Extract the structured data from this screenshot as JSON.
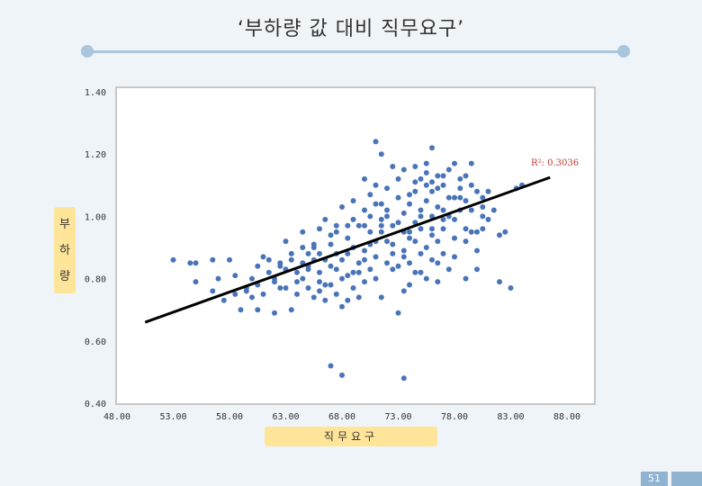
{
  "slide": {
    "title": "‘부하량 값 대비 직무요구’",
    "page_number": "51"
  },
  "colors": {
    "point": "#4a74b8",
    "trendline": "#000000",
    "r2_text": "#c0392b",
    "label_box": "#ffe599",
    "accent": "#a9c6dc"
  },
  "chart_data": {
    "type": "scatter",
    "title": "",
    "xlabel": "직무요구",
    "ylabel": "부하량",
    "xlim": [
      48,
      88
    ],
    "ylim": [
      0.4,
      1.4
    ],
    "x_ticks": [
      "48.00",
      "53.00",
      "58.00",
      "63.00",
      "68.00",
      "73.00",
      "78.00",
      "83.00",
      "88.00"
    ],
    "y_ticks": [
      "0.40",
      "0.60",
      "0.80",
      "1.00",
      "1.20",
      "1.40"
    ],
    "grid": false,
    "trendline": {
      "x": [
        50.5,
        86.5
      ],
      "y": [
        0.66,
        1.125
      ]
    },
    "r2_label": "R²: 0.3036",
    "points": [
      [
        53.0,
        0.86
      ],
      [
        54.5,
        0.85
      ],
      [
        55.0,
        0.85
      ],
      [
        56.5,
        0.86
      ],
      [
        58.0,
        0.86
      ],
      [
        55.0,
        0.79
      ],
      [
        56.5,
        0.76
      ],
      [
        57.5,
        0.73
      ],
      [
        58.5,
        0.81
      ],
      [
        59.5,
        0.77
      ],
      [
        60.0,
        0.8
      ],
      [
        60.5,
        0.84
      ],
      [
        61.0,
        0.87
      ],
      [
        61.5,
        0.82
      ],
      [
        62.0,
        0.79
      ],
      [
        62.5,
        0.77
      ],
      [
        63.0,
        0.83
      ],
      [
        59.0,
        0.7
      ],
      [
        60.5,
        0.7
      ],
      [
        62.0,
        0.69
      ],
      [
        63.5,
        0.7
      ],
      [
        64.0,
        0.75
      ],
      [
        64.5,
        0.8
      ],
      [
        65.0,
        0.84
      ],
      [
        65.5,
        0.86
      ],
      [
        66.0,
        0.82
      ],
      [
        66.5,
        0.78
      ],
      [
        67.0,
        0.84
      ],
      [
        63.0,
        0.92
      ],
      [
        64.5,
        0.95
      ],
      [
        65.5,
        0.9
      ],
      [
        66.0,
        0.96
      ],
      [
        66.5,
        0.99
      ],
      [
        67.0,
        0.94
      ],
      [
        67.5,
        0.88
      ],
      [
        68.0,
        0.86
      ],
      [
        68.5,
        0.81
      ],
      [
        69.0,
        0.77
      ],
      [
        69.5,
        0.82
      ],
      [
        70.0,
        0.86
      ],
      [
        70.5,
        0.83
      ],
      [
        71.0,
        0.8
      ],
      [
        67.5,
        0.75
      ],
      [
        68.5,
        0.73
      ],
      [
        69.5,
        0.74
      ],
      [
        70.0,
        0.97
      ],
      [
        70.5,
        1.0
      ],
      [
        71.0,
        1.04
      ],
      [
        71.5,
        0.97
      ],
      [
        72.0,
        0.92
      ],
      [
        72.5,
        0.88
      ],
      [
        73.0,
        0.84
      ],
      [
        73.5,
        0.89
      ],
      [
        74.0,
        0.93
      ],
      [
        74.5,
        0.98
      ],
      [
        75.0,
        1.02
      ],
      [
        75.5,
        1.05
      ],
      [
        76.0,
        1.08
      ],
      [
        75.0,
        1.12
      ],
      [
        75.5,
        1.1
      ],
      [
        76.0,
        1.11
      ],
      [
        76.5,
        1.03
      ],
      [
        77.0,
        0.99
      ],
      [
        77.5,
        1.0
      ],
      [
        78.0,
        1.06
      ],
      [
        78.5,
        1.09
      ],
      [
        79.0,
        1.13
      ],
      [
        79.5,
        1.1
      ],
      [
        80.0,
        1.08
      ],
      [
        80.5,
        1.03
      ],
      [
        81.0,
        0.99
      ],
      [
        79.0,
        0.96
      ],
      [
        79.5,
        0.95
      ],
      [
        80.0,
        0.95
      ],
      [
        80.5,
        0.96
      ],
      [
        77.0,
        1.13
      ],
      [
        77.5,
        1.15
      ],
      [
        78.5,
        1.12
      ],
      [
        81.0,
        1.08
      ],
      [
        70.0,
        1.12
      ],
      [
        70.5,
        1.07
      ],
      [
        71.0,
        1.1
      ],
      [
        72.0,
        1.09
      ],
      [
        73.0,
        1.06
      ],
      [
        73.5,
        1.01
      ],
      [
        74.0,
        1.04
      ],
      [
        74.5,
        1.08
      ],
      [
        72.5,
        1.16
      ],
      [
        73.0,
        1.12
      ],
      [
        74.0,
        1.07
      ],
      [
        75.0,
        1.0
      ],
      [
        76.0,
        0.96
      ],
      [
        76.5,
        0.92
      ],
      [
        77.0,
        0.88
      ],
      [
        76.0,
        0.86
      ],
      [
        75.0,
        0.82
      ],
      [
        74.0,
        0.78
      ],
      [
        73.5,
        0.76
      ],
      [
        71.5,
        0.74
      ],
      [
        70.0,
        0.79
      ],
      [
        68.0,
        0.71
      ],
      [
        69.0,
        0.9
      ],
      [
        68.5,
        0.93
      ],
      [
        67.5,
        0.95
      ],
      [
        69.5,
        0.97
      ],
      [
        71.5,
        0.95
      ],
      [
        72.5,
        0.97
      ],
      [
        73.5,
        0.95
      ],
      [
        74.5,
        0.92
      ],
      [
        75.5,
        0.9
      ],
      [
        76.5,
        0.85
      ],
      [
        77.5,
        0.83
      ],
      [
        78.0,
        0.87
      ],
      [
        79.0,
        0.8
      ],
      [
        80.0,
        0.83
      ],
      [
        82.0,
        0.94
      ],
      [
        82.5,
        0.95
      ],
      [
        82.0,
        0.79
      ],
      [
        83.0,
        0.77
      ],
      [
        83.5,
        1.09
      ],
      [
        84.0,
        1.1
      ],
      [
        71.5,
        1.2
      ],
      [
        71.0,
        1.24
      ],
      [
        76.0,
        1.22
      ],
      [
        79.5,
        1.17
      ],
      [
        73.0,
        0.69
      ],
      [
        67.0,
        0.52
      ],
      [
        68.0,
        0.49
      ],
      [
        73.5,
        0.48
      ],
      [
        64.5,
        0.85
      ],
      [
        65.0,
        0.88
      ],
      [
        66.0,
        0.79
      ],
      [
        66.5,
        0.73
      ],
      [
        65.5,
        0.74
      ],
      [
        64.0,
        0.82
      ],
      [
        63.5,
        0.88
      ],
      [
        62.5,
        0.85
      ],
      [
        61.5,
        0.86
      ],
      [
        60.5,
        0.78
      ],
      [
        59.5,
        0.76
      ],
      [
        58.5,
        0.75
      ],
      [
        57.0,
        0.8
      ],
      [
        69.0,
        1.05
      ],
      [
        68.0,
        1.03
      ],
      [
        67.5,
        0.97
      ],
      [
        70.5,
        0.91
      ],
      [
        71.0,
        0.87
      ],
      [
        72.0,
        0.85
      ],
      [
        72.5,
        0.83
      ],
      [
        74.0,
        0.85
      ],
      [
        75.0,
        0.88
      ],
      [
        76.0,
        0.94
      ],
      [
        77.0,
        1.02
      ],
      [
        78.0,
        0.99
      ],
      [
        78.5,
        1.02
      ],
      [
        79.0,
        1.05
      ],
      [
        80.5,
        1.0
      ],
      [
        74.5,
        1.11
      ],
      [
        75.5,
        1.14
      ],
      [
        76.5,
        1.09
      ],
      [
        77.5,
        1.06
      ],
      [
        72.0,
        1.02
      ],
      [
        71.5,
        1.04
      ],
      [
        70.0,
        1.02
      ],
      [
        69.0,
        0.99
      ],
      [
        68.5,
        0.97
      ],
      [
        67.0,
        0.91
      ],
      [
        66.0,
        0.88
      ],
      [
        65.0,
        0.83
      ],
      [
        64.0,
        0.79
      ],
      [
        63.0,
        0.77
      ],
      [
        62.0,
        0.8
      ],
      [
        61.0,
        0.75
      ],
      [
        60.0,
        0.74
      ],
      [
        73.5,
        1.15
      ],
      [
        74.5,
        1.16
      ],
      [
        75.5,
        1.17
      ],
      [
        76.5,
        1.13
      ],
      [
        77.0,
        1.1
      ],
      [
        78.0,
        1.17
      ],
      [
        78.5,
        1.06
      ],
      [
        79.5,
        1.02
      ],
      [
        80.5,
        1.06
      ],
      [
        81.5,
        1.02
      ],
      [
        70.5,
        0.95
      ],
      [
        71.5,
        0.99
      ],
      [
        72.5,
        0.91
      ],
      [
        73.5,
        0.87
      ],
      [
        74.5,
        0.82
      ],
      [
        75.5,
        0.8
      ],
      [
        76.5,
        0.79
      ],
      [
        69.5,
        0.85
      ],
      [
        68.5,
        0.88
      ],
      [
        67.5,
        0.83
      ],
      [
        66.5,
        0.86
      ],
      [
        65.5,
        0.91
      ],
      [
        64.5,
        0.9
      ],
      [
        63.5,
        0.86
      ],
      [
        62.5,
        0.84
      ],
      [
        73.0,
        0.98
      ],
      [
        72.0,
        1.0
      ],
      [
        71.0,
        0.92
      ],
      [
        70.0,
        0.89
      ],
      [
        69.0,
        0.82
      ],
      [
        68.0,
        0.8
      ],
      [
        67.0,
        0.78
      ],
      [
        66.0,
        0.76
      ],
      [
        65.0,
        0.77
      ],
      [
        76.0,
        1.0
      ],
      [
        77.0,
        0.96
      ],
      [
        78.0,
        0.93
      ],
      [
        79.0,
        0.92
      ],
      [
        80.0,
        0.89
      ],
      [
        75.0,
        0.96
      ],
      [
        74.0,
        0.95
      ]
    ]
  }
}
